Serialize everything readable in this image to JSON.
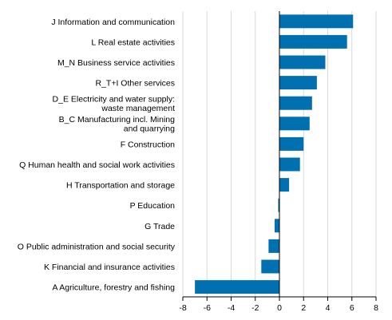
{
  "chart_data": {
    "type": "bar",
    "orientation": "horizontal",
    "title": "",
    "xlabel": "",
    "ylabel": "",
    "categories": [
      [
        "J Information and communication"
      ],
      [
        "L Real estate activities"
      ],
      [
        "M_N Business service activities"
      ],
      [
        "R_T+I Other services"
      ],
      [
        "D_E Electricity and water supply:",
        "waste management"
      ],
      [
        "B_C Manufacturing incl. Mining",
        "and quarrying"
      ],
      [
        "F Construction"
      ],
      [
        "Q  Human health and social work activities"
      ],
      [
        "H Transportation and storage"
      ],
      [
        "P Education"
      ],
      [
        "G Trade"
      ],
      [
        "O Public administration and social security"
      ],
      [
        "K Financial and insurance activities"
      ],
      [
        "A Agriculture, forestry and fishing"
      ]
    ],
    "values": [
      6.1,
      5.6,
      3.8,
      3.1,
      2.7,
      2.5,
      2.0,
      1.7,
      0.8,
      -0.1,
      -0.4,
      -0.9,
      -1.5,
      -7.0
    ],
    "xlim": [
      -8,
      8
    ],
    "xticks": [
      -8,
      -6,
      -4,
      -2,
      0,
      2,
      4,
      6,
      8
    ],
    "grid": true,
    "legend": "none",
    "bar_color": "#0070b0",
    "grid_color": "#d9d9d9",
    "axis_color": "#000000"
  }
}
